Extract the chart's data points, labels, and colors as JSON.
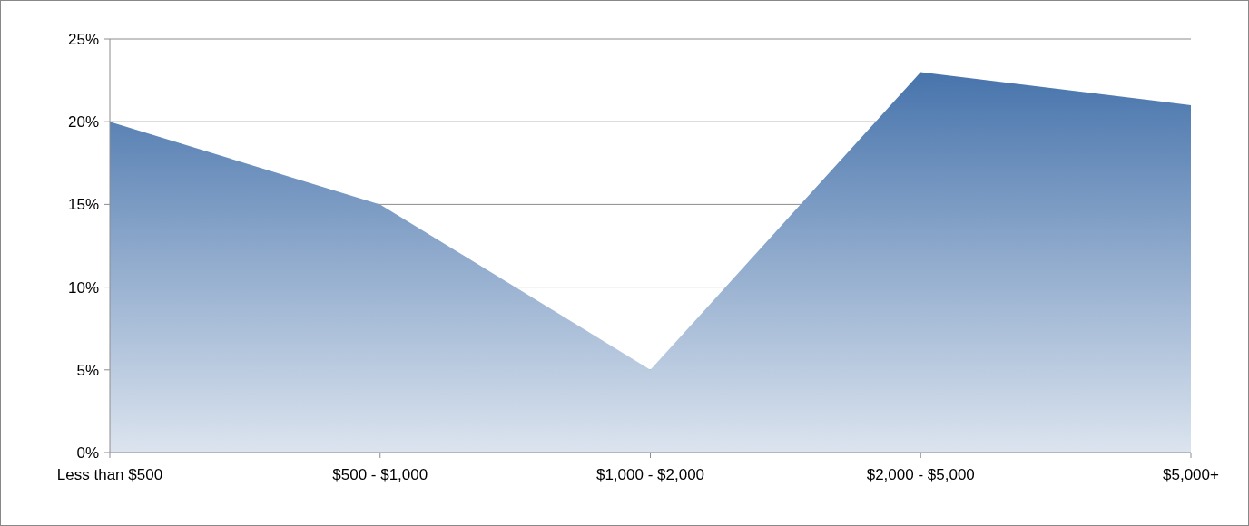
{
  "chart_data": {
    "type": "area",
    "categories": [
      "Less than $500",
      "$500 - $1,000",
      "$1,000 - $2,000",
      "$2,000 - $5,000",
      "$5,000+"
    ],
    "series": [
      {
        "color": "#3a6aa6",
        "values": [
          20,
          15,
          5,
          23,
          21
        ]
      }
    ],
    "ylim": [
      0,
      25
    ],
    "yticks": [
      {
        "value": 0,
        "label": "0%"
      },
      {
        "value": 5,
        "label": "5%"
      },
      {
        "value": 10,
        "label": "10%"
      },
      {
        "value": 15,
        "label": "15%"
      },
      {
        "value": 20,
        "label": "20%"
      },
      {
        "value": 25,
        "label": "25%"
      }
    ],
    "grid": "y"
  }
}
